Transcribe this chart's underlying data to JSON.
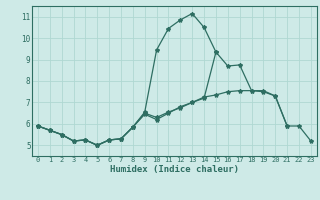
{
  "xlabel": "Humidex (Indice chaleur)",
  "bg_color": "#ceeae7",
  "line_color": "#2e6e62",
  "grid_color": "#afd8d2",
  "xlim": [
    -0.5,
    23.5
  ],
  "ylim": [
    4.5,
    11.5
  ],
  "yticks": [
    5,
    6,
    7,
    8,
    9,
    10,
    11
  ],
  "xticks": [
    0,
    1,
    2,
    3,
    4,
    5,
    6,
    7,
    8,
    9,
    10,
    11,
    12,
    13,
    14,
    15,
    16,
    17,
    18,
    19,
    20,
    21,
    22,
    23
  ],
  "sa_x": [
    0,
    1,
    2,
    3,
    4,
    5,
    6,
    7,
    8,
    9,
    10,
    11,
    12,
    13,
    14,
    15,
    16,
    17,
    18,
    19,
    20,
    21
  ],
  "sa_y": [
    5.9,
    5.7,
    5.5,
    5.2,
    5.25,
    5.0,
    5.25,
    5.3,
    5.85,
    6.5,
    6.3,
    6.55,
    6.75,
    7.0,
    7.25,
    7.35,
    7.5,
    7.55,
    7.55,
    7.5,
    7.3,
    5.9
  ],
  "sb_x": [
    0,
    1,
    2,
    3,
    4,
    5,
    6,
    7,
    8,
    9,
    10,
    11,
    12,
    13,
    14,
    15
  ],
  "sb_y": [
    5.9,
    5.7,
    5.5,
    5.2,
    5.25,
    5.0,
    5.25,
    5.3,
    5.85,
    6.55,
    9.45,
    10.45,
    10.85,
    11.15,
    10.5,
    9.35
  ],
  "sc_x": [
    0,
    1,
    2,
    3,
    4,
    5,
    6,
    7,
    8,
    9,
    10,
    11,
    12,
    13,
    14,
    15,
    16,
    17,
    18,
    19,
    20,
    21,
    22,
    23
  ],
  "sc_y": [
    5.9,
    5.7,
    5.5,
    5.2,
    5.25,
    5.0,
    5.25,
    5.3,
    5.85,
    6.45,
    6.2,
    6.5,
    6.8,
    7.0,
    7.2,
    9.35,
    8.7,
    8.75,
    7.55,
    7.55,
    7.3,
    5.9,
    5.9,
    5.2
  ]
}
